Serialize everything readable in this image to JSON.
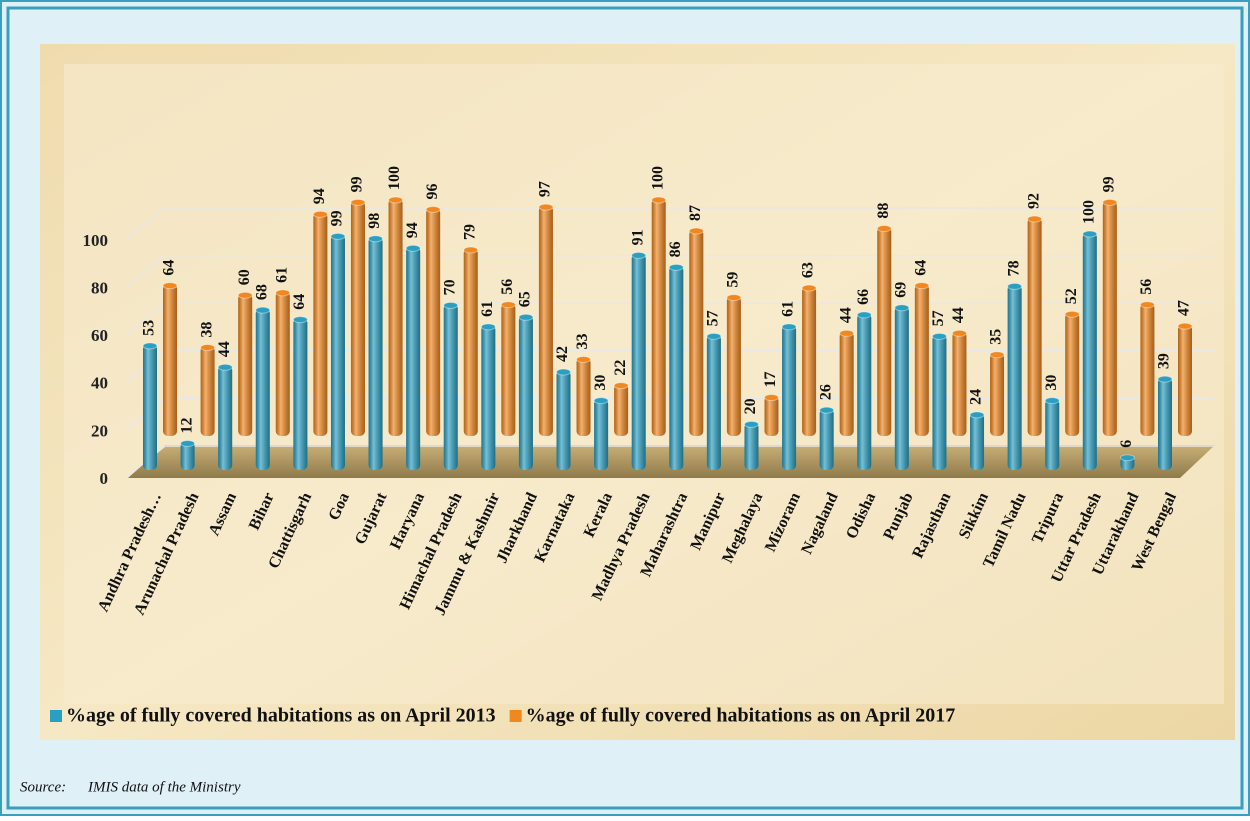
{
  "chart_data": {
    "type": "bar3d",
    "categories": [
      "Andhra Pradesh…",
      "Arunachal Pradesh",
      "Assam",
      "Bihar",
      "Chattisgarh",
      "Goa",
      "Gujarat",
      "Haryana",
      "Himachal Pradesh",
      "Jammu & Kashmir",
      "Jharkhand",
      "Karnataka",
      "Kerala",
      "Madhya Pradesh",
      "Maharashtra",
      "Manipur",
      "Meghalaya",
      "Mizoram",
      "Nagaland",
      "Odisha",
      "Punjab",
      "Rajasthan",
      "Sikkim",
      "Tamil Nadu",
      "Tripura",
      "Uttar Pradesh",
      "Uttarakhand",
      "West Bengal"
    ],
    "series": [
      {
        "name": "%age of fully covered habitations as on April 2013",
        "color": "#2a9fc2",
        "values": [
          53,
          12,
          44,
          68,
          64,
          99,
          98,
          94,
          70,
          61,
          65,
          42,
          30,
          91,
          86,
          57,
          20,
          61,
          26,
          66,
          69,
          57,
          24,
          78,
          30,
          100,
          6,
          39
        ]
      },
      {
        "name": "%age of fully covered habitations as on April 2017",
        "color": "#f0871f",
        "values": [
          64,
          38,
          60,
          61,
          94,
          99,
          100,
          96,
          79,
          56,
          97,
          33,
          22,
          100,
          87,
          59,
          17,
          63,
          44,
          88,
          64,
          44,
          35,
          92,
          52,
          99,
          56,
          47
        ]
      }
    ],
    "ylim": [
      0,
      100
    ],
    "yticks": [
      0,
      20,
      40,
      60,
      80,
      100
    ],
    "grid": true,
    "legend": "bottom"
  },
  "source": {
    "label": "Source:",
    "text": "IMIS data of the Ministry"
  }
}
